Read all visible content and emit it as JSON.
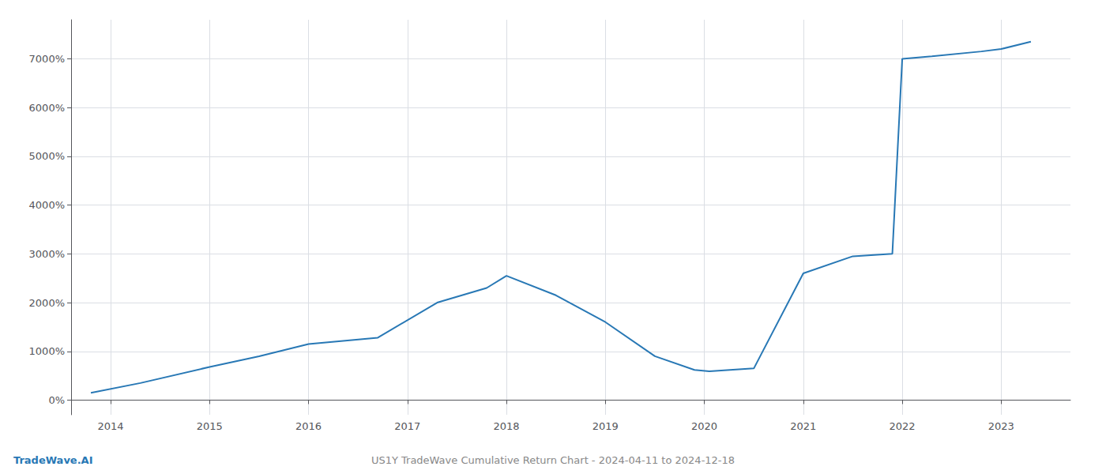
{
  "chart_data": {
    "type": "line",
    "title": "US1Y TradeWave Cumulative Return Chart - 2024-04-11 to 2024-12-18",
    "annotations": [
      "TradeWave.AI"
    ],
    "x": [
      2013.8,
      2014.3,
      2015.0,
      2015.5,
      2016.0,
      2016.7,
      2017.3,
      2017.8,
      2018.0,
      2018.5,
      2019.0,
      2019.5,
      2019.9,
      2020.05,
      2020.2,
      2020.5,
      2021.0,
      2021.5,
      2021.9,
      2022.0,
      2022.3,
      2022.8,
      2023.0,
      2023.3
    ],
    "values": [
      150,
      350,
      680,
      900,
      1150,
      1280,
      2000,
      2300,
      2550,
      2150,
      1600,
      900,
      620,
      590,
      610,
      650,
      2600,
      2950,
      3000,
      7000,
      7050,
      7150,
      7200,
      7350
    ],
    "color": "#2878b5",
    "xlim": [
      2013.6,
      2023.7
    ],
    "xticks": [
      2014,
      2015,
      2016,
      2017,
      2018,
      2019,
      2020,
      2021,
      2022,
      2023
    ],
    "ylim": [
      -300,
      7800
    ],
    "yticks": [
      {
        "value": 0,
        "label": "0%"
      },
      {
        "value": 1000,
        "label": "1000%"
      },
      {
        "value": 2000,
        "label": "2000%"
      },
      {
        "value": 3000,
        "label": "3000%"
      },
      {
        "value": 4000,
        "label": "4000%"
      },
      {
        "value": 5000,
        "label": "5000%"
      },
      {
        "value": 6000,
        "label": "6000%"
      },
      {
        "value": 7000,
        "label": "7000%"
      }
    ],
    "grid": true
  }
}
